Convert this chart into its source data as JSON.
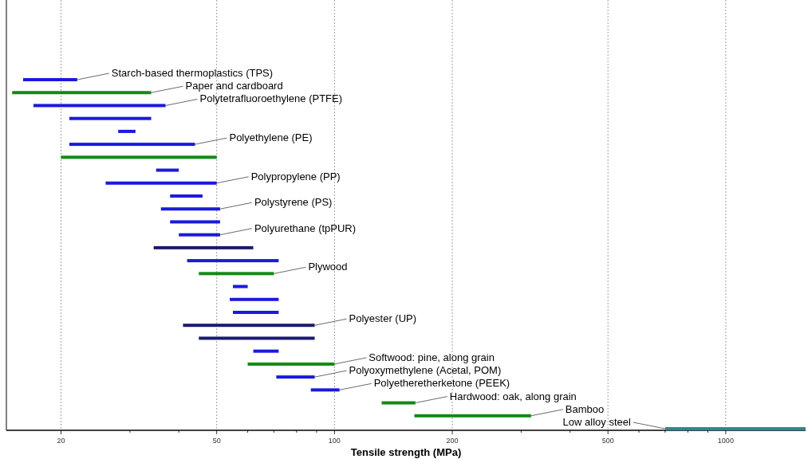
{
  "chart_data": {
    "type": "bar",
    "orientation": "horizontal",
    "xlabel": "Tensile strength (MPa)",
    "log": "x",
    "grid": "x",
    "tick_labels": "x",
    "xlim": [
      14.5,
      1600
    ],
    "xticks": [
      20,
      {
        "value": 30,
        "label": null
      },
      {
        "value": 40,
        "label": null
      },
      50,
      {
        "value": 60,
        "label": null
      },
      {
        "value": 70,
        "label": null
      },
      {
        "value": 80,
        "label": null
      },
      {
        "value": 90,
        "label": null
      },
      100,
      200,
      {
        "value": 300,
        "label": null
      },
      {
        "value": 400,
        "label": null
      },
      500,
      {
        "value": 600,
        "label": null
      },
      {
        "value": 700,
        "label": null
      },
      {
        "value": 800,
        "label": null
      },
      {
        "value": 900,
        "label": null
      },
      1000
    ],
    "categories": [
      "Starch-based thermoplastics (TPS)",
      "Paper and cardboard",
      "Polytetrafluoroethylene (PTFE)",
      null,
      null,
      "Polyethylene (PE)",
      null,
      null,
      "Polypropylene (PP)",
      null,
      "Polystyrene (PS)",
      null,
      "Polyurethane (tpPUR)",
      null,
      null,
      "Plywood",
      null,
      null,
      null,
      "Polyester (UP)",
      null,
      null,
      "Softwood: pine, along grain",
      "Polyoxymethylene (Acetal, POM)",
      "Polyetheretherketone (PEEK)",
      "Hardwood: oak, along grain",
      "Bamboo",
      "Low alloy steel"
    ],
    "base": [
      16,
      15,
      17,
      21,
      28,
      21,
      20,
      35,
      26,
      38,
      36,
      38,
      40,
      34.5,
      42,
      45,
      55,
      54,
      55,
      41,
      45,
      62,
      60,
      71,
      87,
      132,
      160,
      700
    ],
    "values": [
      6,
      19,
      20,
      13,
      3,
      23,
      30,
      5,
      24,
      8,
      15,
      13,
      11,
      27.5,
      30,
      25,
      5,
      18,
      17,
      48,
      44,
      10,
      40,
      18,
      16,
      29,
      158,
      900
    ],
    "colors": [
      "#1a1adc",
      "#138a13",
      "#1a1adc",
      "#1a1adc",
      "#1a1adc",
      "#1a1adc",
      "#138a13",
      "#1a1adc",
      "#1a1adc",
      "#1a1adc",
      "#1a1adc",
      "#1a1adc",
      "#1a1adc",
      "#1a1a6e",
      "#1a1adc",
      "#138a13",
      "#1a1adc",
      "#1a1adc",
      "#1a1adc",
      "#1a1a6e",
      "#1a1a6e",
      "#1a1adc",
      "#138a13",
      "#1a1adc",
      "#1a1adc",
      "#138a13",
      "#138a13",
      "#2a8a8a"
    ]
  }
}
